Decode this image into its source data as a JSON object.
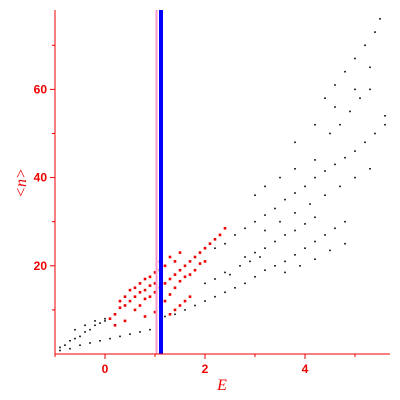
{
  "chart_data": {
    "type": "scatter",
    "xlabel": "E",
    "ylabel": "<n>",
    "xlim": [
      -1,
      5.7
    ],
    "ylim": [
      0,
      78
    ],
    "x_ticks": [
      0,
      2,
      4
    ],
    "x_tick_labels": [
      "0",
      "2",
      "4"
    ],
    "y_ticks": [
      20,
      40,
      60
    ],
    "y_tick_labels": [
      "20",
      "40",
      "60"
    ],
    "grid": false,
    "vertical_lines": [
      {
        "x": 1.03,
        "color": "#ff99cc"
      },
      {
        "x": 1.12,
        "color": "#0000ff"
      }
    ],
    "series": [
      {
        "color": "#000000",
        "points": [
          [
            -0.9,
            1.5
          ],
          [
            -0.8,
            2
          ],
          [
            -0.7,
            3
          ],
          [
            -0.6,
            3.5
          ],
          [
            -0.5,
            4
          ],
          [
            -0.4,
            5
          ],
          [
            -0.3,
            5.5
          ],
          [
            -0.2,
            6.5
          ],
          [
            -0.1,
            7
          ],
          [
            0,
            7.5
          ],
          [
            -0.9,
            0.8
          ],
          [
            -0.7,
            1.2
          ],
          [
            -0.5,
            2
          ],
          [
            -0.3,
            2.5
          ],
          [
            -0.1,
            3
          ],
          [
            0.1,
            3.5
          ],
          [
            0.3,
            4
          ],
          [
            0.5,
            4.5
          ],
          [
            0.7,
            5
          ],
          [
            0.9,
            5.5
          ],
          [
            -0.6,
            5.5
          ],
          [
            -0.4,
            6.5
          ],
          [
            -0.2,
            7.5
          ],
          [
            0,
            8
          ],
          [
            0.2,
            9
          ],
          [
            1.2,
            8.5
          ],
          [
            1.4,
            9
          ],
          [
            1.6,
            10
          ],
          [
            1.8,
            11
          ],
          [
            2,
            12
          ],
          [
            2.2,
            13
          ],
          [
            2.4,
            14
          ],
          [
            2.6,
            15
          ],
          [
            2.8,
            16
          ],
          [
            3,
            17.5
          ],
          [
            3.2,
            19
          ],
          [
            3.4,
            20
          ],
          [
            3.6,
            21
          ],
          [
            3.8,
            22.5
          ],
          [
            4,
            24
          ],
          [
            4.2,
            25.5
          ],
          [
            4.4,
            27
          ],
          [
            4.6,
            28.5
          ],
          [
            4.8,
            30
          ],
          [
            2.2,
            24
          ],
          [
            2.4,
            25
          ],
          [
            2.6,
            27
          ],
          [
            2.8,
            28.5
          ],
          [
            3,
            30
          ],
          [
            3.2,
            31.5
          ],
          [
            3.4,
            33
          ],
          [
            3.6,
            35
          ],
          [
            3.8,
            36.5
          ],
          [
            4,
            38
          ],
          [
            4.2,
            40
          ],
          [
            4.4,
            41.5
          ],
          [
            4.6,
            43
          ],
          [
            4.8,
            44.5
          ],
          [
            5,
            46
          ],
          [
            5.2,
            48
          ],
          [
            5.4,
            50
          ],
          [
            5.6,
            52
          ],
          [
            5.6,
            54
          ],
          [
            2.8,
            22
          ],
          [
            3,
            23
          ],
          [
            3.2,
            24
          ],
          [
            3.4,
            25.5
          ],
          [
            3.6,
            27
          ],
          [
            3.8,
            28
          ],
          [
            4,
            29.5
          ],
          [
            4.2,
            31
          ],
          [
            3.2,
            28
          ],
          [
            3.5,
            30
          ],
          [
            3.8,
            32
          ],
          [
            4.1,
            34
          ],
          [
            4.4,
            36
          ],
          [
            4.7,
            38
          ],
          [
            5,
            40
          ],
          [
            5.3,
            42
          ],
          [
            3,
            36
          ],
          [
            3.2,
            38
          ],
          [
            3.5,
            40
          ],
          [
            3.8,
            42
          ],
          [
            4.2,
            44
          ],
          [
            4.5,
            50
          ],
          [
            4.7,
            52
          ],
          [
            4.9,
            55
          ],
          [
            5.1,
            58
          ],
          [
            5.3,
            60
          ],
          [
            4.4,
            58
          ],
          [
            4.6,
            61
          ],
          [
            4.8,
            64
          ],
          [
            5,
            67
          ],
          [
            5.2,
            70
          ],
          [
            5.4,
            73
          ],
          [
            5.5,
            76
          ],
          [
            3.8,
            48
          ],
          [
            4.2,
            52
          ],
          [
            4.6,
            56
          ],
          [
            5,
            60
          ],
          [
            5.3,
            65
          ],
          [
            2.5,
            18
          ],
          [
            2.7,
            20
          ],
          [
            2.9,
            21
          ],
          [
            3.1,
            22
          ],
          [
            2,
            16
          ],
          [
            2.2,
            17
          ],
          [
            2.4,
            18.5
          ],
          [
            3.6,
            18.5
          ],
          [
            3.9,
            20
          ],
          [
            4.2,
            21.5
          ],
          [
            4.5,
            23.5
          ],
          [
            4.8,
            25
          ]
        ]
      },
      {
        "color": "#ee0000",
        "points": [
          [
            0.1,
            8
          ],
          [
            0.2,
            9
          ],
          [
            0.3,
            10.5
          ],
          [
            0.4,
            11
          ],
          [
            0.5,
            12
          ],
          [
            0.6,
            13
          ],
          [
            0.7,
            14
          ],
          [
            0.8,
            14.5
          ],
          [
            0.9,
            15.5
          ],
          [
            1,
            16
          ],
          [
            0.3,
            12
          ],
          [
            0.4,
            13
          ],
          [
            0.5,
            14.5
          ],
          [
            0.6,
            15
          ],
          [
            0.7,
            16
          ],
          [
            0.8,
            17
          ],
          [
            0.9,
            17.5
          ],
          [
            1,
            18.5
          ],
          [
            1.1,
            19
          ],
          [
            1.2,
            16
          ],
          [
            1.3,
            17
          ],
          [
            1.4,
            18
          ],
          [
            1.5,
            19
          ],
          [
            1.6,
            20
          ],
          [
            1.7,
            21
          ],
          [
            1.8,
            22
          ],
          [
            1.9,
            23
          ],
          [
            2,
            24
          ],
          [
            1.2,
            12
          ],
          [
            1.3,
            13.5
          ],
          [
            1.4,
            15
          ],
          [
            1.5,
            16.5
          ],
          [
            1.6,
            17.5
          ],
          [
            1.7,
            18
          ],
          [
            1.8,
            19
          ],
          [
            1.9,
            20.5
          ],
          [
            2,
            21
          ],
          [
            0.6,
            10
          ],
          [
            0.7,
            11
          ],
          [
            0.8,
            12.5
          ],
          [
            0.9,
            13
          ],
          [
            1,
            14
          ],
          [
            1.1,
            15
          ],
          [
            1.3,
            9
          ],
          [
            1.4,
            10
          ],
          [
            1.5,
            11
          ],
          [
            1.6,
            12
          ],
          [
            1.7,
            13
          ],
          [
            2.1,
            25
          ],
          [
            2.2,
            26
          ],
          [
            2.3,
            27
          ],
          [
            2.4,
            28.5
          ],
          [
            0.2,
            6.5
          ],
          [
            0.4,
            7.5
          ],
          [
            0.8,
            8.5
          ],
          [
            1,
            9.5
          ],
          [
            1.1,
            21
          ],
          [
            1.2,
            20
          ],
          [
            1.3,
            22
          ],
          [
            1.4,
            21
          ],
          [
            1.5,
            23
          ]
        ]
      }
    ]
  }
}
